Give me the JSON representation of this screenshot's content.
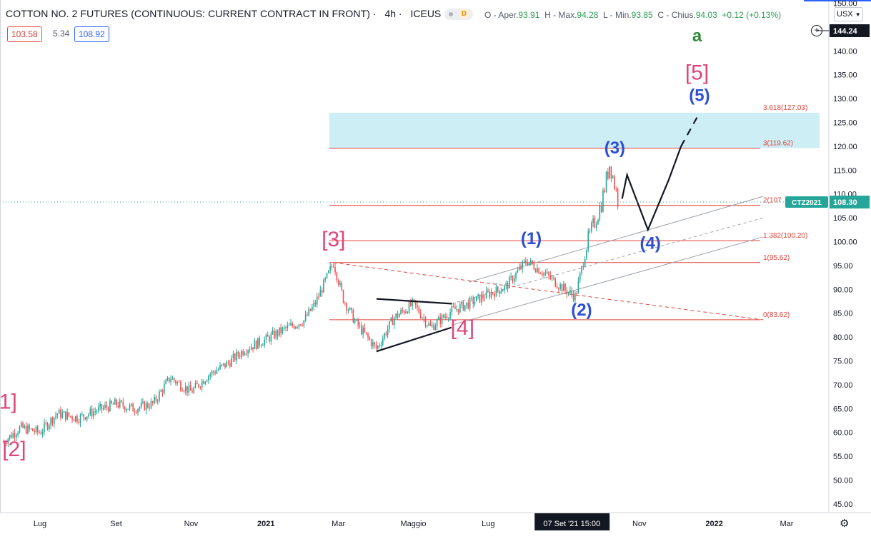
{
  "header": {
    "symbol": "COTTON NO. 2 FUTURES (CONTINUOUS: CURRENT CONTRACT IN FRONT)",
    "sep": "·",
    "timeframe": "4h",
    "exchange": "ICEUS",
    "badge": "D",
    "ohlc": [
      {
        "k": "O - Aper.",
        "v": "93.91"
      },
      {
        "k": "H - Max.",
        "v": "94.28"
      },
      {
        "k": "L - Min.",
        "v": "93.85"
      },
      {
        "k": "C - Chius.",
        "v": "94.03"
      }
    ],
    "change": "+0.12 (+0.13%)"
  },
  "spread": {
    "bid": "103.58",
    "spread": "5.34",
    "ask": "108.92"
  },
  "currency": "USX",
  "price_tags": {
    "top": "144.24",
    "symbol_tag": "CTZ2021",
    "last": "108.30"
  },
  "crosshair_time": "07 Set '21   15:00",
  "icons": {
    "currency_dropdown": "chevron-down-icon",
    "add": "plus-circle-icon",
    "settings": "gear-icon"
  },
  "colors": {
    "up": "#26a69a",
    "down": "#ef5350",
    "wave_pink": "#e0457b",
    "wave_blue": "#2c4fd6",
    "wave_green": "#2e8b3a",
    "fib_line": "#e0443a",
    "target_zone": "#c9ecf5"
  },
  "chart_data": {
    "type": "line",
    "y_axis": {
      "ylim": [
        43,
        152
      ],
      "ticks": [
        "150.00",
        "145.00",
        "140.00",
        "135.00",
        "130.00",
        "125.00",
        "120.00",
        "115.00",
        "110.00",
        "105.00",
        "100.00",
        "95.00",
        "90.00",
        "85.00",
        "80.00",
        "75.00",
        "70.00",
        "65.00",
        "60.00",
        "55.00",
        "50.00",
        "45.00"
      ]
    },
    "x_axis": {
      "ticks": [
        "Lug",
        "Set",
        "Nov",
        "2021",
        "Mar",
        "Maggio",
        "Lug",
        "Nov",
        "2022",
        "Mar"
      ],
      "tick_dates": [
        "2020-07-01",
        "2020-09-01",
        "2020-11-01",
        "2021-01-01",
        "2021-03-01",
        "2021-05-01",
        "2021-07-01",
        "2021-11-01",
        "2022-01-01",
        "2022-03-01"
      ]
    },
    "price_series": {
      "name": "",
      "x": [
        "2020-06-01",
        "2020-06-15",
        "2020-07-01",
        "2020-07-15",
        "2020-08-01",
        "2020-08-15",
        "2020-09-01",
        "2020-09-15",
        "2020-10-01",
        "2020-10-15",
        "2020-11-01",
        "2020-11-15",
        "2020-12-01",
        "2020-12-15",
        "2021-01-01",
        "2021-01-15",
        "2021-02-01",
        "2021-02-10",
        "2021-02-25",
        "2021-03-05",
        "2021-03-15",
        "2021-04-01",
        "2021-04-15",
        "2021-05-01",
        "2021-05-15",
        "2021-06-01",
        "2021-06-15",
        "2021-07-01",
        "2021-07-15",
        "2021-08-01",
        "2021-08-15",
        "2021-09-01",
        "2021-09-10",
        "2021-09-20",
        "2021-10-01",
        "2021-10-08",
        "2021-10-15"
      ],
      "y": [
        58.0,
        61.0,
        60.0,
        64.0,
        63.0,
        64.5,
        66.0,
        65.0,
        66.0,
        71.5,
        68.5,
        72.0,
        74.5,
        77.5,
        79.5,
        81.5,
        83.5,
        87.0,
        95.6,
        88.0,
        83.0,
        77.5,
        84.0,
        87.0,
        82.0,
        85.5,
        87.0,
        89.0,
        90.5,
        96.0,
        93.5,
        90.0,
        88.5,
        100.0,
        108.0,
        116.5,
        108.3
      ]
    },
    "target_zone": {
      "x_start": "2021-02-25",
      "y": [
        119.62,
        127.03
      ]
    },
    "fib_levels": [
      {
        "label": "3.618(127.03)",
        "value": 127.03
      },
      {
        "label": "3(119.62)",
        "value": 119.62
      },
      {
        "label": "2(107",
        "value": 107.6
      },
      {
        "label": "1.382(100.20)",
        "value": 100.2
      },
      {
        "label": "1(95.62)",
        "value": 95.62
      },
      {
        "label": "0(83.62)",
        "value": 83.62
      }
    ],
    "projection": {
      "x": [
        "2021-10-18",
        "2021-10-22",
        "2021-11-08",
        "2021-11-25",
        "2021-12-05",
        "2021-12-20"
      ],
      "y": [
        109.0,
        114.0,
        102.5,
        113.0,
        120.0,
        127.0
      ]
    },
    "triangle": {
      "upper": {
        "x": [
          "2021-04-01",
          "2021-06-01"
        ],
        "y": [
          88.0,
          87.0
        ]
      },
      "lower": {
        "x": [
          "2021-04-01",
          "2021-06-01"
        ],
        "y": [
          77.0,
          82.0
        ]
      }
    },
    "channel_lines": [
      {
        "x": [
          "2021-06-15",
          "2022-02-10"
        ],
        "y": [
          91.5,
          109.5
        ],
        "style": "solid"
      },
      {
        "x": [
          "2021-06-01",
          "2022-02-10"
        ],
        "y": [
          82.5,
          101.0
        ],
        "style": "solid"
      },
      {
        "x": [
          "2021-06-01",
          "2022-02-10"
        ],
        "y": [
          87.0,
          105.0
        ],
        "style": "dashed"
      },
      {
        "x": [
          "2021-02-25",
          "2022-02-10"
        ],
        "y": [
          95.6,
          83.6
        ],
        "style": "dashed-red"
      }
    ],
    "wave_labels": [
      {
        "text": "1]",
        "x": "2020-06-05",
        "y": 65.0,
        "color": "pink"
      },
      {
        "text": "[2]",
        "x": "2020-06-10",
        "y": 55.0,
        "color": "pink"
      },
      {
        "text": "[3]",
        "x": "2021-02-25",
        "y": 99.0,
        "color": "pink"
      },
      {
        "text": "[4]",
        "x": "2021-06-10",
        "y": 80.5,
        "color": "pink"
      },
      {
        "text": "[5]",
        "x": "2021-12-18",
        "y": 134.0,
        "color": "pink"
      },
      {
        "text": "a",
        "x": "2021-12-18",
        "y": 142.0,
        "color": "green"
      },
      {
        "text": "(1)",
        "x": "2021-08-05",
        "y": 99.5,
        "color": "blue"
      },
      {
        "text": "(2)",
        "x": "2021-09-15",
        "y": 84.5,
        "color": "blue"
      },
      {
        "text": "(3)",
        "x": "2021-10-12",
        "y": 118.5,
        "color": "blue"
      },
      {
        "text": "(4)",
        "x": "2021-11-10",
        "y": 98.5,
        "color": "blue"
      },
      {
        "text": "(5)",
        "x": "2021-12-20",
        "y": 129.5,
        "color": "blue"
      }
    ]
  }
}
